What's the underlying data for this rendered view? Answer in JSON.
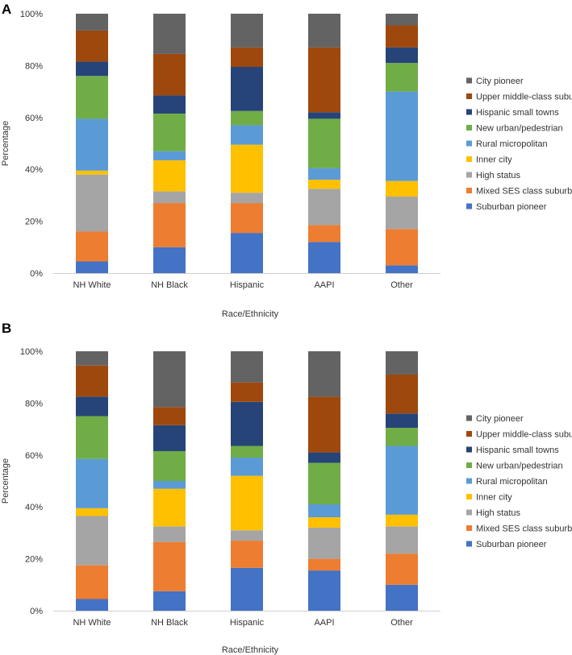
{
  "chart_data": [
    {
      "panel": "A",
      "type": "bar",
      "stacked": true,
      "xlabel": "Race/Ethnicity",
      "ylabel": "Percentage",
      "ylim": [
        0,
        100
      ],
      "yticks": [
        "0%",
        "20%",
        "40%",
        "60%",
        "80%",
        "100%"
      ],
      "categories": [
        "NH White",
        "NH Black",
        "Hispanic",
        "AAPI",
        "Other"
      ],
      "legend_position": "right",
      "series": [
        {
          "name": "Suburban pioneer",
          "color": "#4472C4",
          "values": [
            4.5,
            10,
            15.5,
            12,
            3
          ]
        },
        {
          "name": "Mixed SES class suburb",
          "color": "#ED7D31",
          "values": [
            11.5,
            17,
            11.5,
            6.5,
            14
          ]
        },
        {
          "name": "High status",
          "color": "#A5A5A5",
          "values": [
            22,
            4.5,
            4,
            14,
            12.5
          ]
        },
        {
          "name": "Inner city",
          "color": "#FFC000",
          "values": [
            1.5,
            12,
            18.5,
            3.5,
            6
          ]
        },
        {
          "name": "Rural micropolitan",
          "color": "#5B9BD5",
          "values": [
            20,
            3.5,
            7.5,
            4.5,
            34.5
          ]
        },
        {
          "name": "New urban/pedestrian",
          "color": "#70AD47",
          "values": [
            16.5,
            14.5,
            5.5,
            19,
            11
          ]
        },
        {
          "name": "Hispanic small towns",
          "color": "#264478",
          "values": [
            5.5,
            7,
            17,
            2.5,
            6
          ]
        },
        {
          "name": "Upper middle-class suburb",
          "color": "#9E480E",
          "values": [
            12,
            16,
            7.5,
            25,
            8.5
          ]
        },
        {
          "name": "City pioneer",
          "color": "#636363",
          "values": [
            6.5,
            15.5,
            13,
            13,
            4.5
          ]
        }
      ]
    },
    {
      "panel": "B",
      "type": "bar",
      "stacked": true,
      "xlabel": "Race/Ethnicity",
      "ylabel": "Percentage",
      "ylim": [
        0,
        100
      ],
      "yticks": [
        "0%",
        "20%",
        "40%",
        "60%",
        "80%",
        "100%"
      ],
      "categories": [
        "NH White",
        "NH Black",
        "Hispanic",
        "AAPI",
        "Other"
      ],
      "legend_position": "right",
      "series": [
        {
          "name": "Suburban pioneer",
          "color": "#4472C4",
          "values": [
            4.5,
            7.5,
            16.5,
            15.5,
            10
          ]
        },
        {
          "name": "Mixed SES class suburb",
          "color": "#ED7D31",
          "values": [
            13,
            19,
            10.5,
            4.5,
            12
          ]
        },
        {
          "name": "High status",
          "color": "#A5A5A5",
          "values": [
            19,
            6,
            4,
            12,
            10.5
          ]
        },
        {
          "name": "Inner city",
          "color": "#FFC000",
          "values": [
            3,
            14.5,
            21,
            4,
            4.5
          ]
        },
        {
          "name": "Rural micropolitan",
          "color": "#5B9BD5",
          "values": [
            19,
            3,
            7,
            5,
            26.5
          ]
        },
        {
          "name": "New urban/pedestrian",
          "color": "#70AD47",
          "values": [
            16.5,
            11.5,
            4.5,
            16,
            7
          ]
        },
        {
          "name": "Hispanic small towns",
          "color": "#264478",
          "values": [
            7.5,
            10,
            17,
            4,
            5.5
          ]
        },
        {
          "name": "Upper middle-class suburb",
          "color": "#9E480E",
          "values": [
            12,
            7,
            7.5,
            21.5,
            15
          ]
        },
        {
          "name": "City pioneer",
          "color": "#636363",
          "values": [
            5.5,
            21.5,
            12,
            17.5,
            9
          ]
        }
      ]
    }
  ]
}
